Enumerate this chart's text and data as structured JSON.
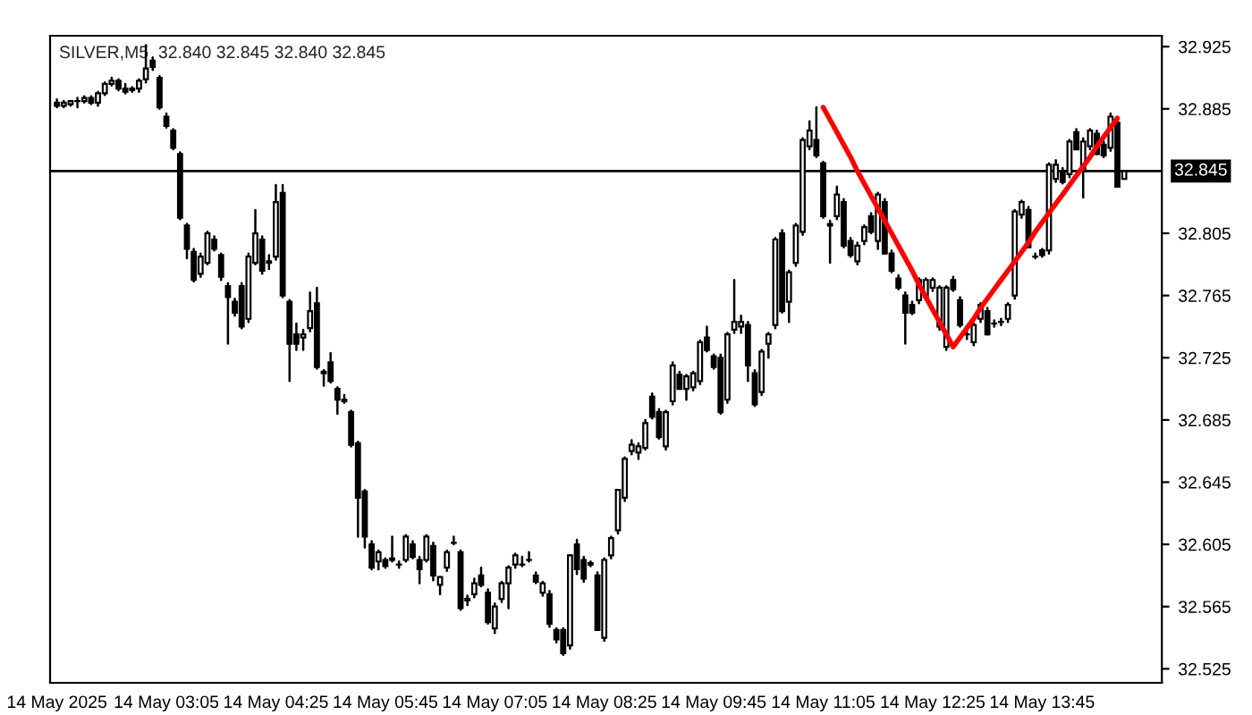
{
  "chart_data": {
    "type": "candlestick",
    "title": "SILVER,M5  32.840 32.845 32.840 32.845",
    "categories": [
      "14 May 2025",
      null,
      null,
      null,
      null,
      null,
      null,
      null,
      null,
      null,
      null,
      null,
      null,
      null,
      null,
      null,
      "14 May 03:05",
      null,
      null,
      null,
      null,
      null,
      null,
      null,
      null,
      null,
      null,
      null,
      null,
      null,
      null,
      null,
      "14 May 04:25",
      null,
      null,
      null,
      null,
      null,
      null,
      null,
      null,
      null,
      null,
      null,
      null,
      null,
      null,
      null,
      "14 May 05:45",
      null,
      null,
      null,
      null,
      null,
      null,
      null,
      null,
      null,
      null,
      null,
      null,
      null,
      null,
      null,
      "14 May 07:05",
      null,
      null,
      null,
      null,
      null,
      null,
      null,
      null,
      null,
      null,
      null,
      null,
      null,
      null,
      null,
      "14 May 08:25",
      null,
      null,
      null,
      null,
      null,
      null,
      null,
      null,
      null,
      null,
      null,
      null,
      null,
      null,
      null,
      "14 May 09:45",
      null,
      null,
      null,
      null,
      null,
      null,
      null,
      null,
      null,
      null,
      null,
      null,
      null,
      null,
      null,
      "14 May 11:05",
      null,
      null,
      null,
      null,
      null,
      null,
      null,
      null,
      null,
      null,
      null,
      null,
      null,
      null,
      null,
      "14 May 12:25",
      null,
      null,
      null,
      null,
      null,
      null,
      null,
      null,
      null,
      null,
      null,
      null,
      null,
      null,
      null,
      "14 May 13:45",
      null,
      null,
      null,
      null,
      null,
      null,
      null,
      null,
      null,
      null,
      null,
      null
    ],
    "ohlc": [
      [
        32.889,
        32.891,
        32.886,
        32.887
      ],
      [
        32.887,
        32.89,
        32.886,
        32.889
      ],
      [
        32.888,
        32.89,
        32.887,
        32.89
      ],
      [
        32.89,
        32.892,
        32.886,
        32.89
      ],
      [
        32.89,
        32.893,
        32.889,
        32.892
      ],
      [
        32.892,
        32.893,
        32.888,
        32.889
      ],
      [
        32.889,
        32.896,
        32.887,
        32.895
      ],
      [
        32.895,
        32.902,
        32.894,
        32.901
      ],
      [
        32.901,
        32.905,
        32.9,
        32.903
      ],
      [
        32.903,
        32.904,
        32.897,
        32.898
      ],
      [
        32.898,
        32.901,
        32.895,
        32.896
      ],
      [
        32.897,
        32.899,
        32.896,
        32.898
      ],
      [
        32.898,
        32.904,
        32.896,
        32.903
      ],
      [
        32.904,
        32.926,
        32.902,
        32.911
      ],
      [
        32.916,
        32.918,
        32.91,
        32.912
      ],
      [
        32.905,
        32.906,
        32.885,
        32.886
      ],
      [
        32.88,
        32.882,
        32.873,
        32.874
      ],
      [
        32.871,
        32.872,
        32.859,
        32.86
      ],
      [
        32.856,
        32.857,
        32.814,
        32.815
      ],
      [
        32.81,
        32.811,
        32.789,
        32.795
      ],
      [
        32.793,
        32.795,
        32.774,
        32.775
      ],
      [
        32.779,
        32.792,
        32.777,
        32.79
      ],
      [
        32.786,
        32.806,
        32.785,
        32.805
      ],
      [
        32.801,
        32.803,
        32.794,
        32.795
      ],
      [
        32.791,
        32.792,
        32.775,
        32.777
      ],
      [
        32.771,
        32.773,
        32.734,
        32.764
      ],
      [
        32.761,
        32.763,
        32.752,
        32.754
      ],
      [
        32.771,
        32.773,
        32.744,
        32.745
      ],
      [
        32.75,
        32.792,
        32.748,
        32.79
      ],
      [
        32.786,
        32.82,
        32.785,
        32.805
      ],
      [
        32.801,
        32.803,
        32.779,
        32.781
      ],
      [
        32.786,
        32.791,
        32.782,
        32.787
      ],
      [
        32.79,
        32.836,
        32.788,
        32.825
      ],
      [
        32.831,
        32.836,
        32.764,
        32.765
      ],
      [
        32.761,
        32.762,
        32.71,
        32.734
      ],
      [
        32.74,
        32.747,
        32.73,
        32.734
      ],
      [
        32.738,
        32.743,
        32.73,
        32.74
      ],
      [
        32.744,
        32.767,
        32.742,
        32.755
      ],
      [
        32.76,
        32.77,
        32.718,
        32.719
      ],
      [
        32.715,
        32.717,
        32.707,
        32.716
      ],
      [
        32.722,
        32.728,
        32.709,
        32.71
      ],
      [
        32.705,
        32.706,
        32.689,
        32.698
      ],
      [
        32.697,
        32.701,
        32.696,
        32.698
      ],
      [
        32.69,
        32.691,
        32.668,
        32.669
      ],
      [
        32.67,
        32.671,
        32.61,
        32.635
      ],
      [
        32.639,
        32.64,
        32.603,
        32.61
      ],
      [
        32.605,
        32.607,
        32.589,
        32.59
      ],
      [
        32.594,
        32.601,
        32.589,
        32.6
      ],
      [
        32.595,
        32.596,
        32.59,
        32.591
      ],
      [
        32.595,
        32.61,
        32.594,
        32.596
      ],
      [
        32.592,
        32.594,
        32.59,
        32.592
      ],
      [
        32.595,
        32.611,
        32.594,
        32.61
      ],
      [
        32.605,
        32.607,
        32.596,
        32.597
      ],
      [
        32.595,
        32.597,
        32.58,
        32.589
      ],
      [
        32.595,
        32.611,
        32.594,
        32.61
      ],
      [
        32.604,
        32.606,
        32.582,
        32.585
      ],
      [
        32.579,
        32.584,
        32.573,
        32.584
      ],
      [
        32.59,
        32.601,
        32.588,
        32.6
      ],
      [
        32.606,
        32.61,
        32.605,
        32.606
      ],
      [
        32.6,
        32.601,
        32.563,
        32.564
      ],
      [
        32.569,
        32.572,
        32.566,
        32.57
      ],
      [
        32.573,
        32.583,
        32.571,
        32.58
      ],
      [
        32.585,
        32.59,
        32.578,
        32.579
      ],
      [
        32.574,
        32.576,
        32.554,
        32.555
      ],
      [
        32.551,
        32.567,
        32.548,
        32.565
      ],
      [
        32.57,
        32.581,
        32.568,
        32.58
      ],
      [
        32.58,
        32.591,
        32.564,
        32.59
      ],
      [
        32.592,
        32.599,
        32.59,
        32.598
      ],
      [
        32.592,
        32.597,
        32.591,
        32.592
      ],
      [
        32.595,
        32.6,
        32.594,
        32.595
      ],
      [
        32.585,
        32.587,
        32.58,
        32.581
      ],
      [
        32.574,
        32.581,
        32.572,
        32.58
      ],
      [
        32.573,
        32.575,
        32.552,
        32.554
      ],
      [
        32.55,
        32.551,
        32.542,
        32.544
      ],
      [
        32.55,
        32.551,
        32.534,
        32.535
      ],
      [
        32.54,
        32.598,
        32.538,
        32.598
      ],
      [
        32.605,
        32.608,
        32.586,
        32.589
      ],
      [
        32.595,
        32.597,
        32.581,
        32.583
      ],
      [
        32.592,
        32.594,
        32.591,
        32.593
      ],
      [
        32.585,
        32.587,
        32.55,
        32.55
      ],
      [
        32.545,
        32.596,
        32.543,
        32.595
      ],
      [
        32.598,
        32.61,
        32.596,
        32.609
      ],
      [
        32.614,
        32.64,
        32.612,
        32.64
      ],
      [
        32.635,
        32.661,
        32.633,
        32.66
      ],
      [
        32.665,
        32.672,
        32.663,
        32.669
      ],
      [
        32.664,
        32.67,
        32.66,
        32.668
      ],
      [
        32.667,
        32.685,
        32.666,
        32.683
      ],
      [
        32.7,
        32.702,
        32.686,
        32.687
      ],
      [
        32.69,
        32.692,
        32.673,
        32.674
      ],
      [
        32.668,
        32.691,
        32.666,
        32.69
      ],
      [
        32.697,
        32.722,
        32.695,
        32.72
      ],
      [
        32.714,
        32.716,
        32.705,
        32.705
      ],
      [
        32.705,
        32.714,
        32.698,
        32.713
      ],
      [
        32.706,
        32.716,
        32.704,
        32.715
      ],
      [
        32.71,
        32.736,
        32.708,
        32.735
      ],
      [
        32.738,
        32.745,
        32.729,
        32.73
      ],
      [
        32.726,
        32.727,
        32.718,
        32.719
      ],
      [
        32.725,
        32.727,
        32.689,
        32.69
      ],
      [
        32.698,
        32.741,
        32.696,
        32.74
      ],
      [
        32.743,
        32.775,
        32.741,
        32.748
      ],
      [
        32.745,
        32.752,
        32.741,
        32.748
      ],
      [
        32.746,
        32.748,
        32.71,
        32.72
      ],
      [
        32.715,
        32.717,
        32.694,
        32.695
      ],
      [
        32.703,
        32.73,
        32.701,
        32.729
      ],
      [
        32.734,
        32.741,
        32.725,
        32.74
      ],
      [
        32.746,
        32.802,
        32.744,
        32.801
      ],
      [
        32.805,
        32.807,
        32.754,
        32.755
      ],
      [
        32.761,
        32.781,
        32.748,
        32.78
      ],
      [
        32.786,
        32.811,
        32.784,
        32.81
      ],
      [
        32.806,
        32.866,
        32.804,
        32.865
      ],
      [
        32.861,
        32.877,
        32.859,
        32.871
      ],
      [
        32.865,
        32.886,
        32.854,
        32.855
      ],
      [
        32.85,
        32.851,
        32.815,
        32.816
      ],
      [
        32.811,
        32.813,
        32.786,
        32.81
      ],
      [
        32.816,
        32.835,
        32.814,
        32.83
      ],
      [
        32.825,
        32.827,
        32.796,
        32.797
      ],
      [
        32.8,
        32.802,
        32.79,
        32.791
      ],
      [
        32.787,
        32.799,
        32.785,
        32.797
      ],
      [
        32.8,
        32.81,
        32.798,
        32.809
      ],
      [
        32.816,
        32.818,
        32.805,
        32.806
      ],
      [
        32.8,
        32.831,
        32.795,
        32.83
      ],
      [
        32.825,
        32.827,
        32.792,
        32.792
      ],
      [
        32.792,
        32.794,
        32.78,
        32.781
      ],
      [
        32.776,
        32.778,
        32.769,
        32.77
      ],
      [
        32.765,
        32.767,
        32.734,
        32.754
      ],
      [
        32.759,
        32.761,
        32.753,
        32.754
      ],
      [
        32.762,
        32.776,
        32.76,
        32.775
      ],
      [
        32.764,
        32.776,
        32.762,
        32.775
      ],
      [
        32.77,
        32.776,
        32.768,
        32.775
      ],
      [
        32.745,
        32.771,
        32.743,
        32.77
      ],
      [
        32.732,
        32.771,
        32.73,
        32.77
      ],
      [
        32.775,
        32.777,
        32.768,
        32.769
      ],
      [
        32.762,
        32.764,
        32.745,
        32.746
      ],
      [
        32.74,
        32.743,
        32.737,
        32.74
      ],
      [
        32.735,
        32.747,
        32.733,
        32.746
      ],
      [
        32.75,
        32.76,
        32.748,
        32.759
      ],
      [
        32.755,
        32.757,
        32.74,
        32.74
      ],
      [
        32.747,
        32.749,
        32.745,
        32.747
      ],
      [
        32.748,
        32.75,
        32.746,
        32.748
      ],
      [
        32.75,
        32.76,
        32.748,
        32.759
      ],
      [
        32.765,
        32.82,
        32.763,
        32.819
      ],
      [
        32.817,
        32.826,
        32.815,
        32.825
      ],
      [
        32.82,
        32.822,
        32.796,
        32.796
      ],
      [
        32.79,
        32.792,
        32.789,
        32.79
      ],
      [
        32.794,
        32.795,
        32.79,
        32.791
      ],
      [
        32.794,
        32.85,
        32.792,
        32.849
      ],
      [
        32.84,
        32.852,
        32.838,
        32.849
      ],
      [
        32.845,
        32.847,
        32.837,
        32.838
      ],
      [
        32.843,
        32.865,
        32.841,
        32.864
      ],
      [
        32.87,
        32.872,
        32.859,
        32.859
      ],
      [
        32.845,
        32.866,
        32.828,
        32.864
      ],
      [
        32.861,
        32.872,
        32.859,
        32.871
      ],
      [
        32.869,
        32.871,
        32.856,
        32.856
      ],
      [
        32.862,
        32.864,
        32.854,
        32.855
      ],
      [
        32.86,
        32.882,
        32.858,
        32.88
      ],
      [
        32.876,
        32.878,
        32.835,
        32.835
      ],
      [
        32.84,
        32.845,
        32.84,
        32.845
      ]
    ],
    "color": "#000000",
    "series": [
      {
        "type": "line",
        "color": "#ff0000",
        "values": [
          null,
          null,
          null,
          null,
          null,
          null,
          null,
          null,
          null,
          null,
          null,
          null,
          null,
          null,
          null,
          null,
          null,
          null,
          null,
          null,
          null,
          null,
          null,
          null,
          null,
          null,
          null,
          null,
          null,
          null,
          null,
          null,
          null,
          null,
          null,
          null,
          null,
          null,
          null,
          null,
          null,
          null,
          null,
          null,
          null,
          null,
          null,
          null,
          null,
          null,
          null,
          null,
          null,
          null,
          null,
          null,
          null,
          null,
          null,
          null,
          null,
          null,
          null,
          null,
          null,
          null,
          null,
          null,
          null,
          null,
          null,
          null,
          null,
          null,
          null,
          null,
          null,
          null,
          null,
          null,
          null,
          null,
          null,
          null,
          null,
          null,
          null,
          null,
          null,
          null,
          null,
          null,
          null,
          null,
          null,
          null,
          null,
          null,
          null,
          null,
          null,
          null,
          null,
          null,
          null,
          null,
          null,
          null,
          null,
          null,
          null,
          null,
          32.886,
          32.878,
          32.87,
          32.862,
          32.854,
          32.845,
          32.837,
          32.829,
          32.821,
          32.813,
          32.805,
          32.797,
          32.789,
          32.781,
          32.772,
          32.764,
          32.756,
          32.748,
          32.74,
          32.732,
          32.738,
          32.744,
          32.75,
          32.757,
          32.763,
          32.769,
          32.775,
          32.781,
          32.787,
          32.793,
          32.799,
          32.806,
          32.812,
          32.818,
          32.824,
          32.83,
          32.836,
          32.842,
          32.848,
          32.854,
          32.861,
          32.867,
          32.873,
          32.879,
          null
        ]
      }
    ],
    "ref_lines": [
      {
        "axis": "y",
        "value": 32.845,
        "label": "32.845",
        "color": "#000000"
      }
    ],
    "ylim": [
      32.516,
      32.932
    ],
    "yticks": [
      {
        "value": 32.525,
        "label": "32.525"
      },
      {
        "value": 32.565,
        "label": "32.565"
      },
      {
        "value": 32.605,
        "label": "32.605"
      },
      {
        "value": 32.645,
        "label": "32.645"
      },
      {
        "value": 32.685,
        "label": "32.685"
      },
      {
        "value": 32.725,
        "label": "32.725"
      },
      {
        "value": 32.765,
        "label": "32.765"
      },
      {
        "value": 32.805,
        "label": "32.805"
      },
      {
        "value": 32.885,
        "label": "32.885"
      },
      {
        "value": 32.925,
        "label": "32.925"
      }
    ],
    "grid": false,
    "legend": false
  }
}
